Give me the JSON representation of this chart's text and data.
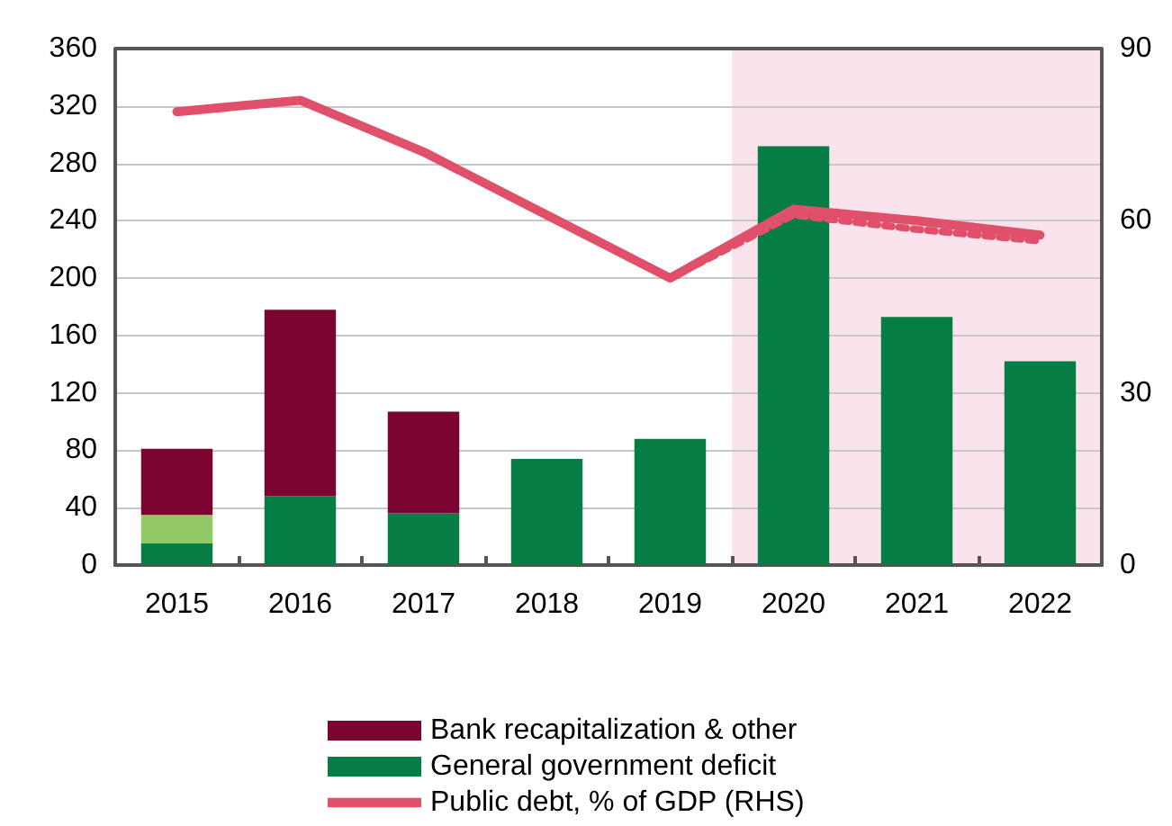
{
  "chart_data": {
    "type": "bar",
    "stacked": true,
    "categories": [
      "2015",
      "2016",
      "2017",
      "2018",
      "2019",
      "2020",
      "2021",
      "2022"
    ],
    "series": [
      {
        "name": "General government deficit",
        "color": "#077d46",
        "values": [
          15,
          48,
          36,
          74,
          88,
          292,
          173,
          142
        ]
      },
      {
        "color": "#92c865",
        "values": [
          20,
          null,
          null,
          null,
          null,
          null,
          null,
          null
        ]
      },
      {
        "name": "Bank recapitalization & other",
        "color": "#7b0530",
        "values": [
          46,
          130,
          71,
          null,
          null,
          null,
          null,
          null
        ]
      },
      {
        "name": "Public debt, % of GDP (RHS)",
        "type": "line",
        "axis": "y2",
        "color": "#e0506a",
        "line_style": "solid",
        "values": [
          79,
          81,
          72,
          61,
          50,
          62,
          60,
          57.5
        ]
      },
      {
        "type": "line",
        "axis": "y2",
        "color": "#e0506a",
        "line_style": "dotted",
        "values": [
          null,
          null,
          null,
          null,
          50,
          61,
          58.5,
          56.5
        ]
      }
    ],
    "ylim": [
      0,
      360
    ],
    "yticks": [
      0,
      40,
      80,
      120,
      160,
      200,
      240,
      280,
      320,
      360
    ],
    "y2lim": [
      0,
      90
    ],
    "y2ticks": [
      0,
      30,
      60,
      90
    ],
    "bands": [
      {
        "axis": "x",
        "from": "2020",
        "to": "2022",
        "color": "#fbe3ed"
      }
    ],
    "grid": "y",
    "legend": "bottom",
    "marker": "none"
  }
}
